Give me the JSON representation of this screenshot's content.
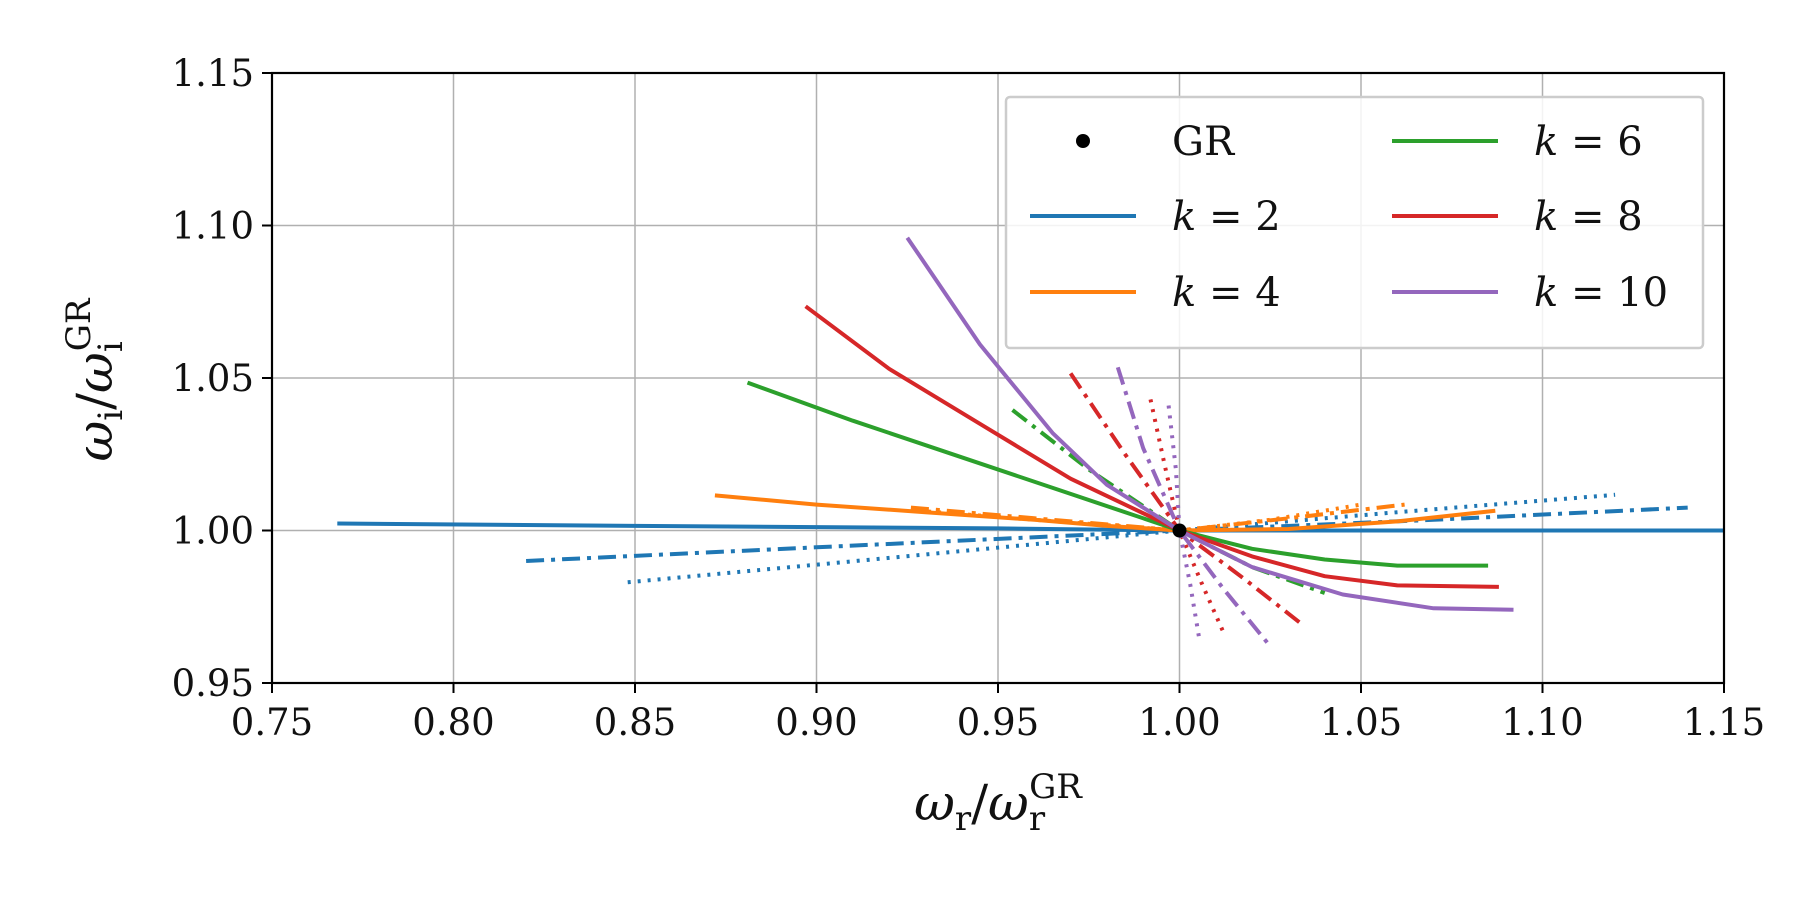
{
  "chart_data": {
    "type": "line",
    "title": "",
    "xlabel": {
      "base": "ω",
      "sub": "r",
      "sep": "/",
      "sup": "GR"
    },
    "ylabel": {
      "base": "ω",
      "sub": "i",
      "sep": "/",
      "sup": "GR"
    },
    "xlim": [
      0.75,
      1.15
    ],
    "ylim": [
      0.95,
      1.15
    ],
    "xticks": [
      "0.75",
      "0.80",
      "0.85",
      "0.90",
      "0.95",
      "1.00",
      "1.05",
      "1.10",
      "1.15"
    ],
    "yticks": [
      "0.95",
      "1.00",
      "1.05",
      "1.10",
      "1.15"
    ],
    "grid": true,
    "legend": {
      "placement": "top-right",
      "columns": 2,
      "entries": [
        {
          "id": "gr",
          "label": "GR",
          "kind": "marker",
          "color": "#000000"
        },
        {
          "id": "k2",
          "label_var": "k",
          "label_eq": " = ",
          "label_val": "2",
          "kind": "line",
          "color": "#1f77b4"
        },
        {
          "id": "k4",
          "label_var": "k",
          "label_eq": " = ",
          "label_val": "4",
          "kind": "line",
          "color": "#ff7f0e"
        },
        {
          "id": "k6",
          "label_var": "k",
          "label_eq": " = ",
          "label_val": "6",
          "kind": "line",
          "color": "#2ca02c"
        },
        {
          "id": "k8",
          "label_var": "k",
          "label_eq": " = ",
          "label_val": "8",
          "kind": "line",
          "color": "#d62728"
        },
        {
          "id": "k10",
          "label_var": "k",
          "label_eq": " = ",
          "label_val": "10",
          "kind": "line",
          "color": "#9467bd"
        }
      ]
    },
    "gr_point": {
      "x": 1.0,
      "y": 1.0,
      "label": "GR"
    },
    "series": [
      {
        "name": "k=2 solid",
        "k": 2,
        "style": "solid",
        "color": "#1f77b4",
        "x": [
          0.768,
          0.85,
          0.95,
          1.0,
          1.05,
          1.15
        ],
        "y": [
          1.0023,
          1.0015,
          1.0007,
          1.0,
          1.0,
          1.0
        ]
      },
      {
        "name": "k=2 dashdot",
        "k": 2,
        "style": "dashdot",
        "color": "#1f77b4",
        "x": [
          0.82,
          0.9,
          1.0,
          1.07,
          1.14
        ],
        "y": [
          0.99,
          0.9945,
          1.0,
          1.0035,
          1.0075
        ]
      },
      {
        "name": "k=2 dotted",
        "k": 2,
        "style": "dotted",
        "color": "#1f77b4",
        "x": [
          0.848,
          0.92,
          1.0,
          1.06,
          1.12
        ],
        "y": [
          0.983,
          0.991,
          1.0,
          1.006,
          1.0117
        ]
      },
      {
        "name": "k=4 solid",
        "k": 4,
        "style": "solid",
        "color": "#ff7f0e",
        "x": [
          0.872,
          0.9,
          0.93,
          0.96,
          0.98,
          1.0,
          1.03,
          1.06,
          1.087
        ],
        "y": [
          1.0115,
          1.0085,
          1.006,
          1.0035,
          1.0015,
          1.0,
          1.0005,
          1.003,
          1.0065
        ]
      },
      {
        "name": "k=4 dashdot",
        "k": 4,
        "style": "dashdot",
        "color": "#ff7f0e",
        "x": [
          0.926,
          0.96,
          1.0,
          1.03,
          1.062
        ],
        "y": [
          1.0075,
          1.004,
          1.0,
          1.004,
          1.0085
        ]
      },
      {
        "name": "k=4 dotted",
        "k": 4,
        "style": "dotted",
        "color": "#ff7f0e",
        "x": [
          0.928,
          0.96,
          1.0,
          1.025,
          1.05
        ],
        "y": [
          1.0065,
          1.0035,
          1.0,
          1.0035,
          1.0085
        ]
      },
      {
        "name": "k=6 solid",
        "k": 6,
        "style": "solid",
        "color": "#2ca02c",
        "x": [
          0.881,
          0.91,
          0.94,
          0.97,
          1.0,
          1.02,
          1.04,
          1.06,
          1.085
        ],
        "y": [
          1.0485,
          1.036,
          1.024,
          1.012,
          1.0,
          0.994,
          0.9905,
          0.9885,
          0.9885
        ]
      },
      {
        "name": "k=6 dashdot",
        "k": 6,
        "style": "dashdot",
        "color": "#2ca02c",
        "x": [
          0.954,
          0.975,
          1.0,
          1.02,
          1.04
        ],
        "y": [
          1.0395,
          1.02,
          1.0,
          0.988,
          0.9795
        ]
      },
      {
        "name": "k=8 solid",
        "k": 8,
        "style": "solid",
        "color": "#d62728",
        "x": [
          0.897,
          0.92,
          0.945,
          0.97,
          1.0,
          1.02,
          1.04,
          1.06,
          1.088
        ],
        "y": [
          1.0735,
          1.053,
          1.035,
          1.017,
          1.0,
          0.9915,
          0.985,
          0.982,
          0.9815
        ]
      },
      {
        "name": "k=8 dashdot",
        "k": 8,
        "style": "dashdot",
        "color": "#d62728",
        "x": [
          0.97,
          0.985,
          1.0,
          1.018,
          1.034
        ],
        "y": [
          1.0515,
          1.025,
          1.0,
          0.984,
          0.969
        ]
      },
      {
        "name": "k=8 dotted",
        "k": 8,
        "style": "dotted",
        "color": "#d62728",
        "x": [
          0.992,
          0.996,
          1.0,
          1.006,
          1.0125
        ],
        "y": [
          1.043,
          1.021,
          1.0,
          0.983,
          0.9655
        ]
      },
      {
        "name": "k=10 solid",
        "k": 10,
        "style": "solid",
        "color": "#9467bd",
        "x": [
          0.925,
          0.945,
          0.965,
          0.98,
          1.0,
          1.02,
          1.045,
          1.07,
          1.092
        ],
        "y": [
          1.096,
          1.061,
          1.032,
          1.015,
          1.0,
          0.988,
          0.979,
          0.9745,
          0.974
        ]
      },
      {
        "name": "k=10 dashdot",
        "k": 10,
        "style": "dashdot",
        "color": "#9467bd",
        "x": [
          0.983,
          0.99,
          1.0,
          1.012,
          1.025
        ],
        "y": [
          1.0535,
          1.027,
          1.0,
          0.981,
          0.962
        ]
      },
      {
        "name": "k=10 dotted",
        "k": 10,
        "style": "dotted",
        "color": "#9467bd",
        "x": [
          0.997,
          0.999,
          1.0,
          1.003,
          1.0055
        ],
        "y": [
          1.041,
          1.02,
          1.0,
          0.982,
          0.964
        ]
      }
    ]
  }
}
